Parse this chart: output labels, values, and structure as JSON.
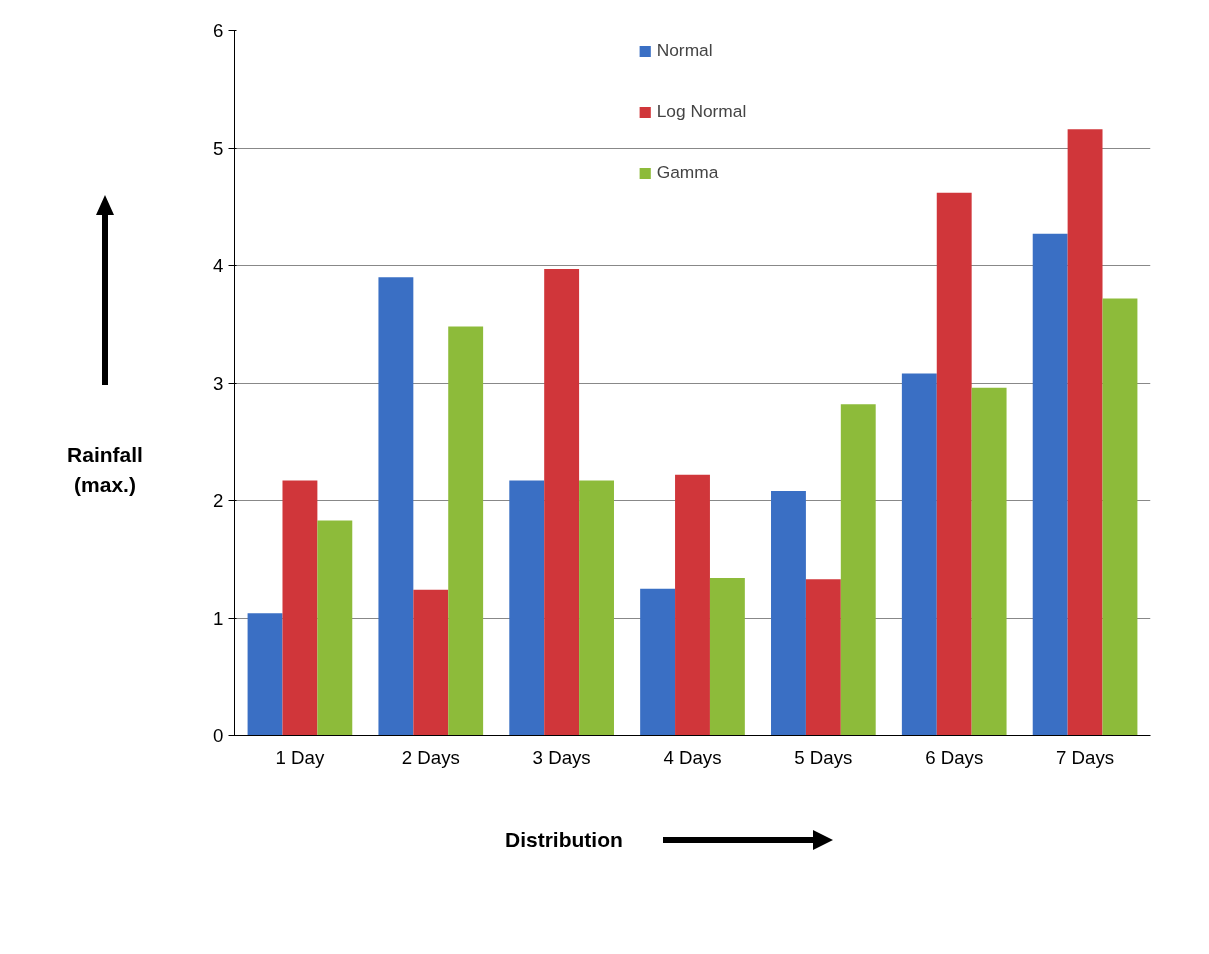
{
  "chart_data": {
    "type": "bar",
    "xlabel": "Distribution",
    "ylabel": "Rainfall (max.)",
    "categories": [
      "1 Day",
      "2 Days",
      "3 Days",
      "4 Days",
      "5 Days",
      "6 Days",
      "7 Days"
    ],
    "series": [
      {
        "name": "Normal",
        "color": "#3a6fc4",
        "values": [
          1.04,
          3.9,
          2.17,
          1.25,
          2.08,
          3.08,
          4.27
        ]
      },
      {
        "name": "Log Normal",
        "color": "#d0363a",
        "values": [
          2.17,
          1.24,
          3.97,
          2.22,
          1.33,
          4.62,
          5.16
        ]
      },
      {
        "name": "Gamma",
        "color": "#8dbb3a",
        "values": [
          1.83,
          3.48,
          2.17,
          1.34,
          2.82,
          2.96,
          3.72
        ]
      }
    ],
    "ylim": [
      0,
      6
    ],
    "yticks": [
      0,
      1,
      2,
      3,
      4,
      5,
      6
    ],
    "grid": "y",
    "legend": "top"
  }
}
